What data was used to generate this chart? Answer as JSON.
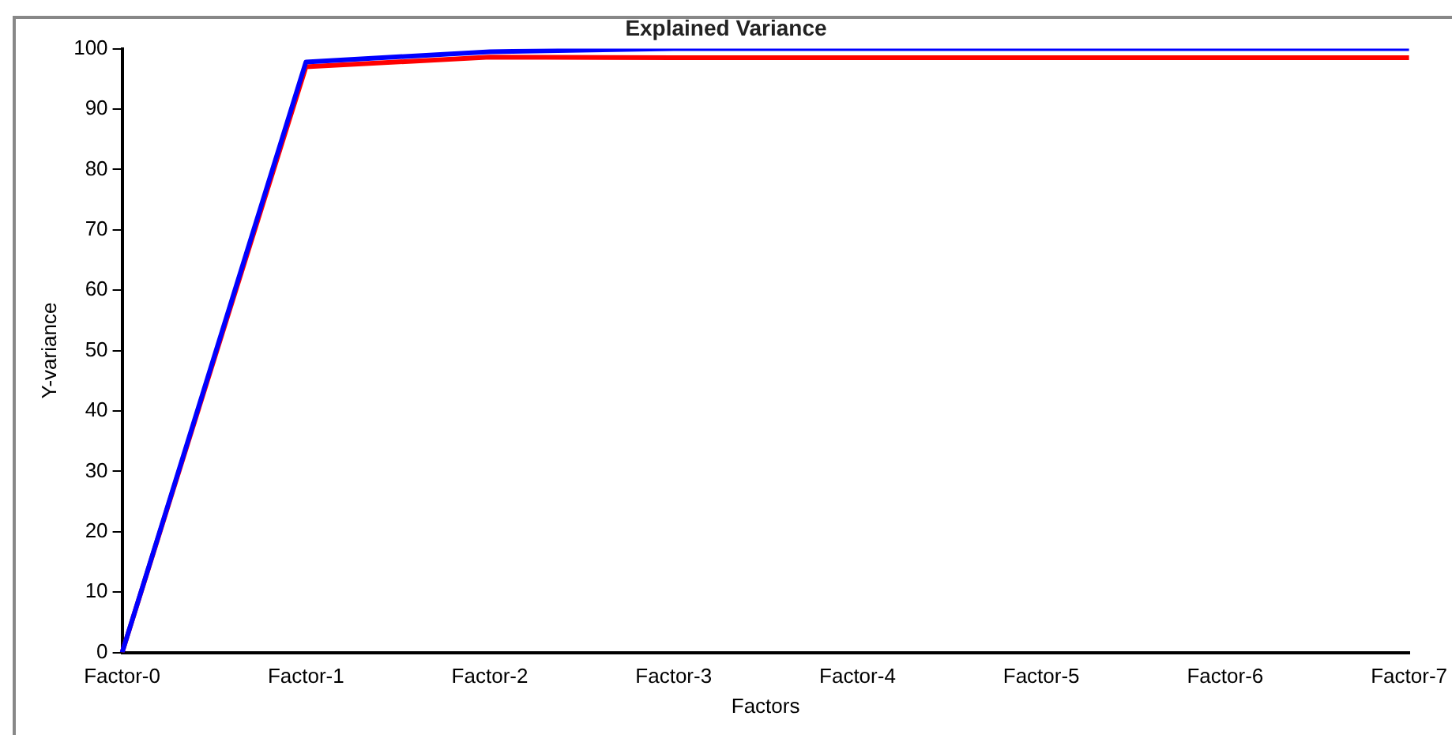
{
  "chart_data": {
    "type": "line",
    "title": "Explained Variance",
    "xlabel": "Factors",
    "ylabel": "Y-variance",
    "categories": [
      "Factor-0",
      "Factor-1",
      "Factor-2",
      "Factor-3",
      "Factor-4",
      "Factor-5",
      "Factor-6",
      "Factor-7"
    ],
    "series": [
      {
        "color": "#0000ff",
        "values": [
          0,
          97.8,
          99.5,
          100,
          100,
          100,
          100,
          100
        ]
      },
      {
        "color": "#ff0000",
        "values": [
          0,
          97,
          98.6,
          98.5,
          98.5,
          98.5,
          98.5,
          98.5
        ]
      }
    ],
    "ylim": [
      0,
      100
    ],
    "yticks": [
      0,
      10,
      20,
      30,
      40,
      50,
      60,
      70,
      80,
      90,
      100
    ],
    "grid": false,
    "legend": false,
    "marker": "none",
    "line_style": "solid"
  }
}
